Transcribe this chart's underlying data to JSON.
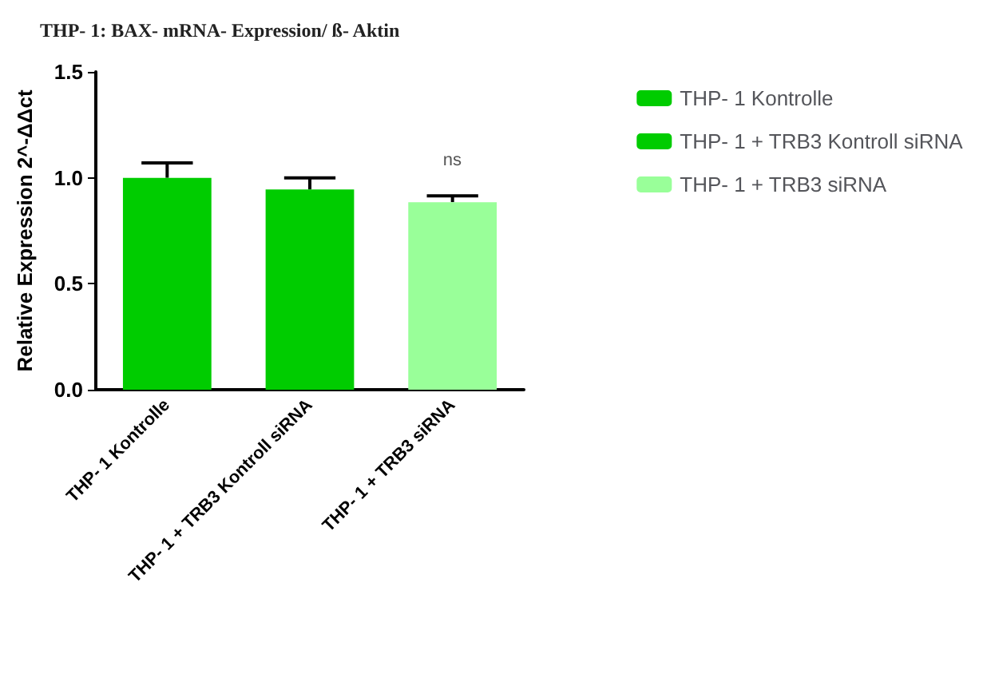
{
  "chart_data": {
    "type": "bar",
    "title": "THP- 1: BAX- mRNA- Expression/ ß- Aktin",
    "ylabel": "Relative Expression 2^-ΔΔct",
    "categories": [
      "THP- 1 Kontrolle",
      "THP- 1 + TRB3 Kontroll siRNA",
      "THP- 1 + TRB3 siRNA"
    ],
    "series": [
      {
        "name": "THP- 1 Kontrolle",
        "color": "#00cc00",
        "values": [
          1.0,
          null,
          null
        ],
        "errors": [
          [
            1.0,
            1.07
          ],
          null,
          null
        ]
      },
      {
        "name": "THP- 1 + TRB3 Kontroll siRNA",
        "color": "#00cc00",
        "values": [
          null,
          0.945,
          null
        ],
        "errors": [
          null,
          [
            0.945,
            1.0
          ],
          null
        ]
      },
      {
        "name": "THP- 1 + TRB3 siRNA",
        "color": "#99ff99",
        "values": [
          null,
          null,
          0.885
        ],
        "errors": [
          null,
          null,
          [
            0.885,
            0.915
          ]
        ]
      }
    ],
    "annotations": [
      "ns"
    ],
    "ylim": [
      0,
      1.5
    ],
    "yticks": [
      {
        "value": 0,
        "label": "0.0"
      },
      {
        "value": 0.5,
        "label": "0.5"
      },
      {
        "value": 1,
        "label": "1.0"
      },
      {
        "value": 1.5,
        "label": "1.5"
      }
    ],
    "grid": false,
    "legend": "right"
  }
}
